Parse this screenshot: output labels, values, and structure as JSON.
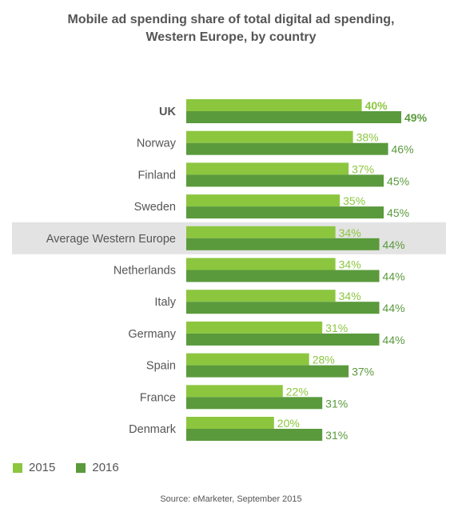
{
  "chart_data": {
    "type": "bar",
    "orientation": "horizontal",
    "title": "Mobile ad spending share of total digital ad spending,",
    "subtitle": "Western Europe, by country",
    "categories": [
      "UK",
      "Norway",
      "Finland",
      "Sweden",
      "Average Western Europe",
      "Netherlands",
      "Italy",
      "Germany",
      "Spain",
      "France",
      "Denmark"
    ],
    "highlighted_category": "Average Western Europe",
    "bold_category": "UK",
    "series": [
      {
        "name": "2015",
        "color": "#8cc63f",
        "values": [
          40,
          38,
          37,
          35,
          34,
          34,
          34,
          31,
          28,
          22,
          20
        ],
        "labels": [
          "40%",
          "38%",
          "37%",
          "35%",
          "34%",
          "34%",
          "34%",
          "31%",
          "28%",
          "22%",
          "20%"
        ]
      },
      {
        "name": "2016",
        "color": "#5a9a3c",
        "values": [
          49,
          46,
          45,
          45,
          44,
          44,
          44,
          44,
          37,
          31,
          31
        ],
        "labels": [
          "49%",
          "46%",
          "45%",
          "45%",
          "44%",
          "44%",
          "44%",
          "44%",
          "37%",
          "31%",
          "31%"
        ]
      }
    ],
    "xlim": [
      0,
      49
    ],
    "grid": false,
    "legend": "bottom-left",
    "source": "Source: eMarketer, September 2015"
  },
  "colors": {
    "series_2015": "#8cc63f",
    "series_2016": "#5a9a3c",
    "highlight_band": "#e3e3e3",
    "text": "#555555"
  }
}
